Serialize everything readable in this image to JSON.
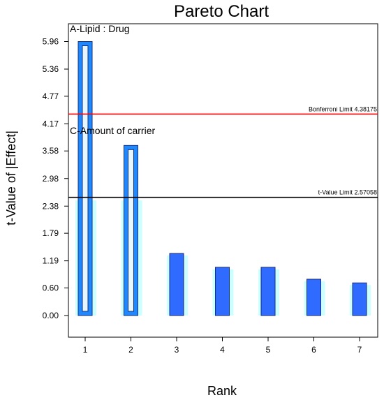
{
  "chart_data": {
    "type": "bar",
    "title": "Pareto Chart",
    "xlabel": "Rank",
    "ylabel": "t-Value of |Effect|",
    "categories": [
      "1",
      "2",
      "3",
      "4",
      "5",
      "6",
      "7"
    ],
    "values": [
      5.96,
      3.7,
      1.35,
      1.05,
      1.05,
      0.79,
      0.71
    ],
    "outlined_bars": [
      "1",
      "2"
    ],
    "yticks": [
      "0.00",
      "0.60",
      "1.19",
      "1.79",
      "2.38",
      "2.98",
      "3.58",
      "4.17",
      "4.77",
      "5.36",
      "5.96"
    ],
    "ylim": [
      0,
      6.1
    ],
    "grid": false,
    "limits": [
      {
        "label": "Bonferroni Limit 4.38175",
        "value": 4.38175,
        "color": "#ff0000"
      },
      {
        "label": "t-Value Limit 2.57058",
        "value": 2.57058,
        "color": "#000000"
      }
    ],
    "annotations": [
      {
        "text": "A-Lipid : Drug",
        "bar": "1"
      },
      {
        "text": "C-Amount of carrier",
        "bar": "2"
      }
    ],
    "colors": {
      "bar_fill": "#2f6bff",
      "bar_edge": "#1a2f7a",
      "outline_blue": "#1e88ff",
      "outline_inner": "#e6f7ff",
      "shadow": "#ccffff",
      "axis": "#000000"
    }
  }
}
